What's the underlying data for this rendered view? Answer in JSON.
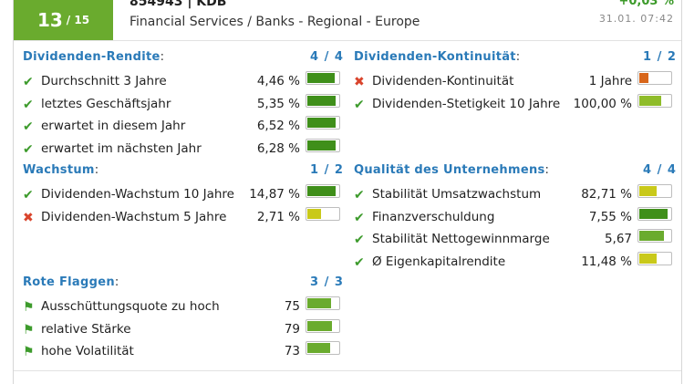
{
  "header": {
    "score": "13",
    "score_total": "/ 15",
    "title": "854943 | KDB",
    "sector": "Financial Services / Banks - Regional - Europe",
    "change": "+0,03 %",
    "timestamp": "31.01. 07:42"
  },
  "colors": {
    "dark_green": "#3f8f1a",
    "mid_green": "#6aab2e",
    "light_green": "#8fbc2a",
    "yellow": "#c9c91a",
    "orange": "#d8661a"
  },
  "sections": {
    "dividend_yield": {
      "title": "Dividenden-Rendite",
      "score": "4 / 4",
      "rows": [
        {
          "icon": "check-icon",
          "label": "Durchschnitt 3 Jahre",
          "value": "4,46 %",
          "level": 0.88,
          "color": "#3f8f1a"
        },
        {
          "icon": "check-icon",
          "label": "letztes Geschäftsjahr",
          "value": "5,35 %",
          "level": 0.9,
          "color": "#3f8f1a"
        },
        {
          "icon": "check-icon",
          "label": "erwartet in diesem Jahr",
          "value": "6,52 %",
          "level": 0.92,
          "color": "#3f8f1a"
        },
        {
          "icon": "check-icon",
          "label": "erwartet im nächsten Jahr",
          "value": "6,28 %",
          "level": 0.92,
          "color": "#3f8f1a"
        }
      ]
    },
    "growth": {
      "title": "Wachstum",
      "score": "1 / 2",
      "rows": [
        {
          "icon": "check-icon",
          "label": "Dividenden-Wachstum 10 Jahre",
          "value": "14,87 %",
          "level": 0.92,
          "color": "#3f8f1a"
        },
        {
          "icon": "cross-icon",
          "label": "Dividenden-Wachstum 5 Jahre",
          "value": "2,71 %",
          "level": 0.45,
          "color": "#c9c91a"
        }
      ]
    },
    "red_flags": {
      "title": "Rote Flaggen",
      "score": "3 / 3",
      "rows": [
        {
          "icon": "flag-icon",
          "label": "Ausschüttungsquote zu hoch",
          "value": "75",
          "level": 0.75,
          "color": "#6aab2e"
        },
        {
          "icon": "flag-icon",
          "label": "relative Stärke",
          "value": "79",
          "level": 0.79,
          "color": "#6aab2e"
        },
        {
          "icon": "flag-icon",
          "label": "hohe Volatilität",
          "value": "73",
          "level": 0.73,
          "color": "#6aab2e"
        }
      ]
    },
    "dividend_continuity": {
      "title": "Dividenden-Kontinuität",
      "score": "1 / 2",
      "rows": [
        {
          "icon": "cross-icon",
          "label": "Dividenden-Kontinuität",
          "value": "1 Jahre",
          "level": 0.28,
          "color": "#d8661a"
        },
        {
          "icon": "check-icon",
          "label": "Dividenden-Stetigkeit 10 Jahre",
          "value": "100,00 %",
          "level": 0.72,
          "color": "#8fbc2a"
        }
      ]
    },
    "quality": {
      "title": "Qualität des Unternehmens",
      "score": "4 / 4",
      "rows": [
        {
          "icon": "check-icon",
          "label": "Stabilität Umsatzwachstum",
          "value": "82,71 %",
          "level": 0.55,
          "color": "#c9c91a"
        },
        {
          "icon": "check-icon",
          "label": "Finanzverschuldung",
          "value": "7,55 %",
          "level": 0.92,
          "color": "#3f8f1a"
        },
        {
          "icon": "check-icon",
          "label": "Stabilität Nettogewinnmarge",
          "value": "5,67",
          "level": 0.8,
          "color": "#6aab2e"
        },
        {
          "icon": "check-icon",
          "label": "Ø Eigenkapitalrendite",
          "value": "11,48 %",
          "level": 0.55,
          "color": "#c9c91a"
        }
      ]
    }
  }
}
